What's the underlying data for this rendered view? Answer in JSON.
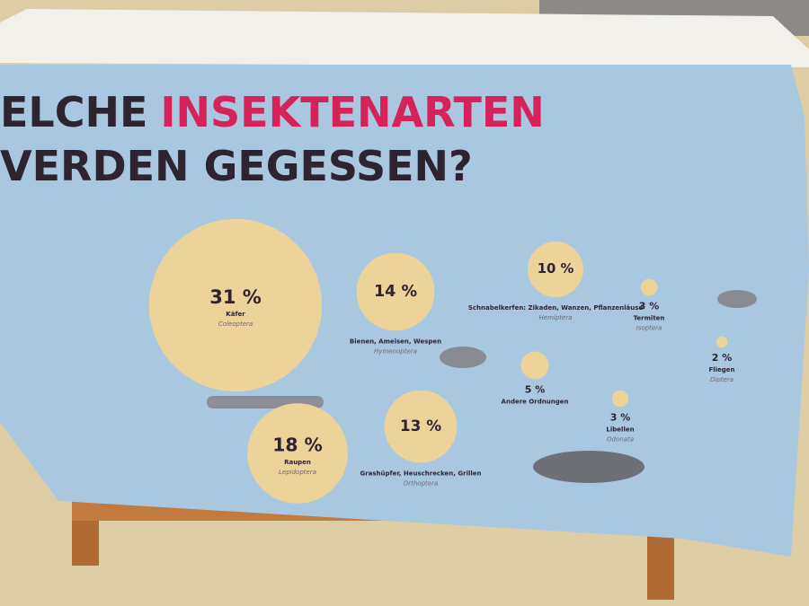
{
  "chart_data": {
    "type": "bubble",
    "title_lines": [
      [
        "ELCHE",
        "INSEKTENARTEN"
      ],
      [
        "VERDEN GEGESSEN?"
      ]
    ],
    "title_colors": [
      "#2e2430",
      "#d6225a"
    ],
    "bubble_color": "#ecd39a",
    "categories": [
      "Käfer",
      "Bienen, Ameisen, Wespen",
      "Schnabelkerfen: Zikaden, Wanzen, Pflanzenläuse",
      "Termiten",
      "Fliegen",
      "Andere Ordnungen",
      "Libellen",
      "Grashüpfer, Heuschrecken, Grillen",
      "Raupen"
    ],
    "latin": [
      "Coleoptera",
      "Hymenoptera",
      "Hemiptera",
      "Isoptera",
      "Diptera",
      null,
      "Odonata",
      "Orthoptera",
      "Lepidoptera"
    ],
    "values": [
      31,
      14,
      10,
      3,
      2,
      5,
      3,
      13,
      18
    ],
    "value_labels": [
      "31 %",
      "14 %",
      "10 %",
      "3 %",
      "2 %",
      "5 %",
      "3 %",
      "13 %",
      "18 %"
    ]
  }
}
